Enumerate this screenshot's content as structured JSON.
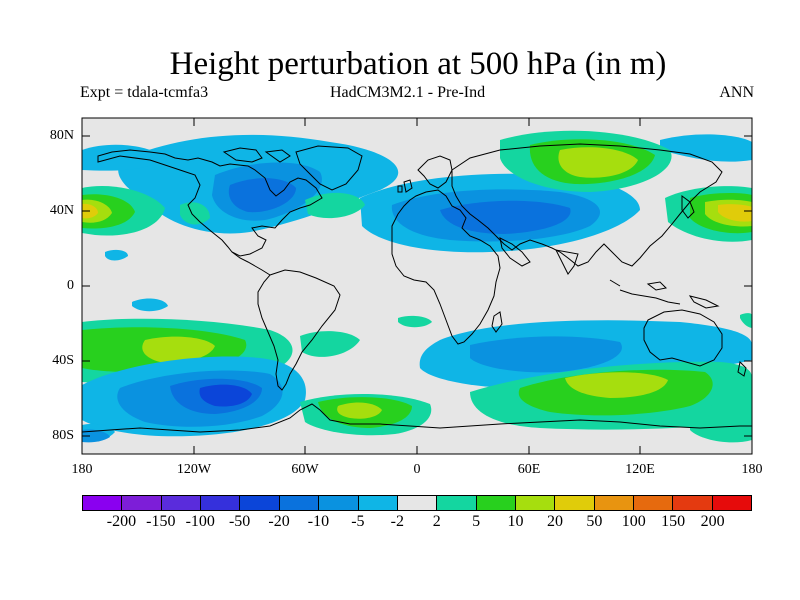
{
  "header": {
    "title": "Height perturbation at 500 hPa (in m)",
    "expt": "Expt = tdala-tcmfa3",
    "model": "HadCM3M2.1 - Pre-Ind",
    "period": "ANN"
  },
  "axes": {
    "lat_ticks": [
      "80N",
      "40N",
      "0",
      "40S",
      "80S"
    ],
    "lon_ticks": [
      "180",
      "120W",
      "60W",
      "0",
      "60E",
      "120E",
      "180"
    ]
  },
  "colorbar": {
    "labels": [
      "-200",
      "-150",
      "-100",
      "-50",
      "-20",
      "-10",
      "-5",
      "-2",
      "2",
      "5",
      "10",
      "20",
      "50",
      "100",
      "150",
      "200"
    ],
    "colors": [
      "#8a00f0",
      "#7d1ed8",
      "#5a2cdc",
      "#3530dc",
      "#0b45d9",
      "#0a72dd",
      "#0a92e0",
      "#0fb5e6",
      "#e6e6e6",
      "#14d6a0",
      "#28d01e",
      "#a6de0e",
      "#e0cc0a",
      "#e89410",
      "#e66a0e",
      "#e43a10",
      "#e60b0b"
    ]
  },
  "map_layers": [
    "contour-fill",
    "coastlines"
  ]
}
